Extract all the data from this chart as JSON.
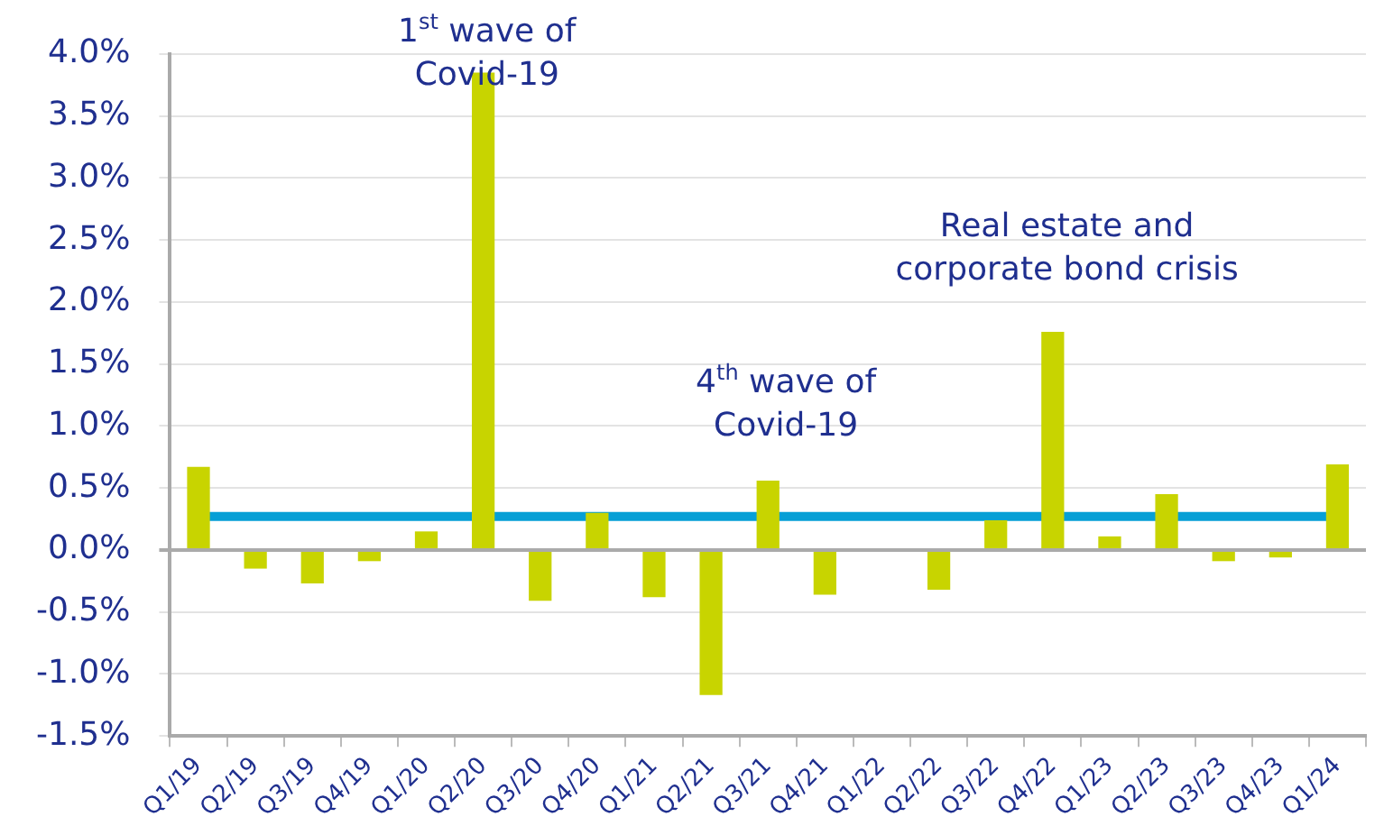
{
  "chart_data": {
    "type": "bar",
    "categories": [
      "Q1/19",
      "Q2/19",
      "Q3/19",
      "Q4/19",
      "Q1/20",
      "Q2/20",
      "Q3/20",
      "Q4/20",
      "Q1/21",
      "Q2/21",
      "Q3/21",
      "Q4/21",
      "Q1/22",
      "Q2/22",
      "Q3/22",
      "Q4/22",
      "Q1/23",
      "Q2/23",
      "Q3/23",
      "Q4/23",
      "Q1/24"
    ],
    "values": [
      0.67,
      -0.15,
      -0.27,
      -0.09,
      0.15,
      3.85,
      -0.41,
      0.3,
      -0.38,
      -1.17,
      0.56,
      -0.36,
      0,
      -0.32,
      0.24,
      1.76,
      0.11,
      0.45,
      -0.09,
      -0.06,
      0.69
    ],
    "color": "#c8d400",
    "ylim": [
      -1.5,
      4.0
    ],
    "yticks": [
      {
        "value": -1.5,
        "label": "-1.5%"
      },
      {
        "value": -1.0,
        "label": "-1.0%"
      },
      {
        "value": -0.5,
        "label": "-0.5%"
      },
      {
        "value": 0,
        "label": "0.0%"
      },
      {
        "value": 0.5,
        "label": "0.5%"
      },
      {
        "value": 1.0,
        "label": "1.0%"
      },
      {
        "value": 1.5,
        "label": "1.5%"
      },
      {
        "value": 2.0,
        "label": "2.0%"
      },
      {
        "value": 2.5,
        "label": "2.5%"
      },
      {
        "value": 3.0,
        "label": "3.0%"
      },
      {
        "value": 3.5,
        "label": "3.5%"
      },
      {
        "value": 4.0,
        "label": "4.0%"
      }
    ],
    "grid": "y",
    "ref_lines": [
      {
        "axis": "y",
        "value": 0.27,
        "color": "#069fd6"
      }
    ],
    "annotations": [
      "1$^{st}$ wave of\nCovid-19",
      "4$^{th}$ wave of\nCovid-19",
      "Real estate and\ncorporate bond crisis"
    ]
  }
}
